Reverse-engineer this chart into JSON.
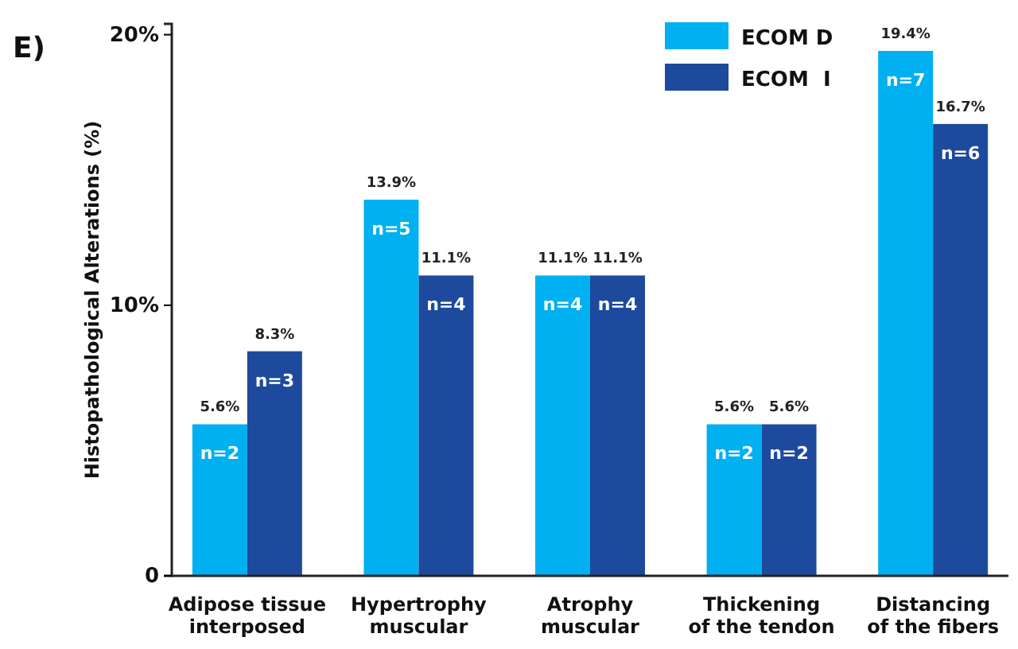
{
  "chart_data": {
    "type": "bar",
    "ylabel": "Histopathological Alterations (%)",
    "categories": [
      "Adipose tissue\ninterposed",
      "Hypertrophy\nmuscular",
      "Atrophy\nmuscular",
      "Thickening\nof the tendon",
      "Distancing\nof the fibers"
    ],
    "series": [
      {
        "name": "ECOM D",
        "color": "#00b0f0",
        "values": [
          5.6,
          13.9,
          11.1,
          5.6,
          19.4
        ],
        "value_labels": [
          "5.6%",
          "13.9%",
          "11.1%",
          "5.6%",
          "19.4%"
        ]
      },
      {
        "name": "ECOM  I",
        "color": "#1d4a9c",
        "values": [
          8.3,
          11.1,
          11.1,
          5.6,
          16.7
        ],
        "value_labels": [
          "8.3%",
          "11.1%",
          "11.1%",
          "5.6%",
          "16.7%"
        ]
      }
    ],
    "ylim": [
      0,
      20.4
    ],
    "yticks": [
      0,
      {
        "value": 10,
        "label": "10%"
      },
      {
        "value": 20,
        "label": "20%"
      }
    ],
    "grid": false,
    "legend": "top right",
    "annotations": [
      "E)",
      {
        "text": "n=2",
        "x": "Adipose tissue\ninterposed",
        "y": 5.6
      },
      {
        "text": "n=3",
        "x": "Adipose tissue\ninterposed",
        "y": 8.3
      },
      {
        "text": "n=5",
        "x": "Hypertrophy\nmuscular",
        "y": 13.9
      },
      {
        "text": "n=4",
        "x": "Hypertrophy\nmuscular",
        "y": 11.1
      },
      {
        "text": "n=4",
        "x": "Atrophy\nmuscular",
        "y": 11.1
      },
      {
        "text": "n=4",
        "x": "Atrophy\nmuscular",
        "y": 11.1
      },
      {
        "text": "n=2",
        "x": "Thickening\nof the tendon",
        "y": 5.6
      },
      {
        "text": "n=2",
        "x": "Thickening\nof the tendon",
        "y": 5.6
      },
      {
        "text": "n=7",
        "x": "Distancing\nof the fibers",
        "y": 19.4
      },
      {
        "text": "n=6",
        "x": "Distancing\nof the fibers",
        "y": 16.7
      }
    ]
  }
}
